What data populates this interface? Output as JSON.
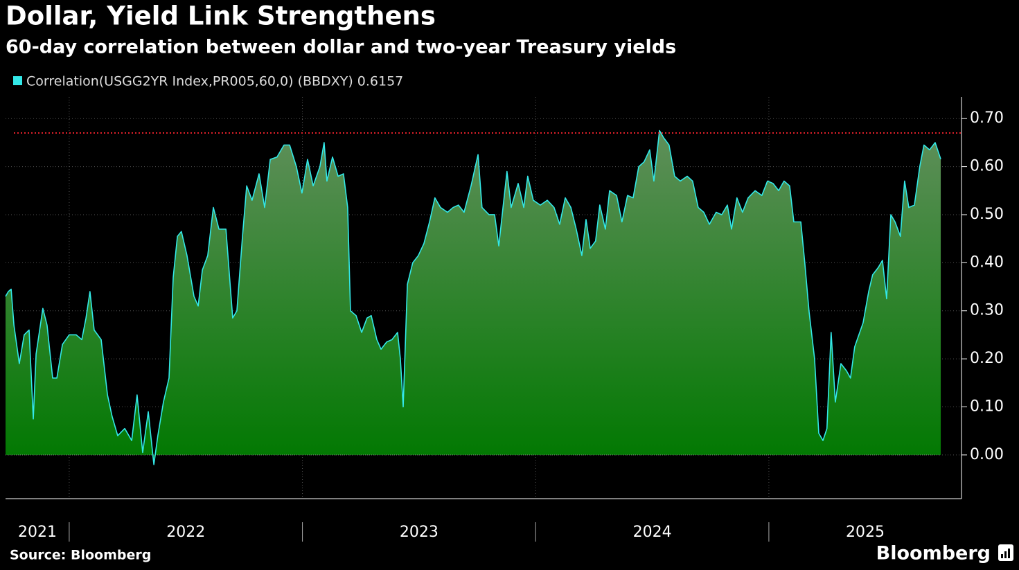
{
  "chart_data": {
    "type": "area",
    "title": "Dollar, Yield Link Strengthens",
    "subtitle": "60-day correlation between dollar and two-year Treasury yields",
    "source": "Source: Bloomberg",
    "brand": "Bloomberg",
    "x": [
      2021.727,
      2021.739,
      2021.751,
      2021.763,
      2021.786,
      2021.807,
      2021.828,
      2021.846,
      2021.858,
      2021.887,
      2021.905,
      2021.929,
      2021.947,
      2021.971,
      2022.0,
      2022.03,
      2022.054,
      2022.072,
      2022.089,
      2022.107,
      2022.137,
      2022.164,
      2022.184,
      2022.208,
      2022.238,
      2022.268,
      2022.291,
      2022.315,
      2022.339,
      2022.363,
      2022.38,
      2022.404,
      2022.428,
      2022.446,
      2022.464,
      2022.481,
      2022.505,
      2022.535,
      2022.553,
      2022.571,
      2022.594,
      2022.618,
      2022.642,
      2022.672,
      2022.701,
      2022.719,
      2022.743,
      2022.761,
      2022.784,
      2022.814,
      2022.838,
      2022.862,
      2022.891,
      2022.921,
      2022.945,
      2022.974,
      2022.998,
      2023.022,
      2023.046,
      2023.075,
      2023.093,
      2023.105,
      2023.129,
      2023.153,
      2023.176,
      2023.194,
      2023.206,
      2023.23,
      2023.254,
      2023.277,
      2023.295,
      2023.319,
      2023.337,
      2023.361,
      2023.384,
      2023.408,
      2023.42,
      2023.432,
      2023.45,
      2023.473,
      2023.497,
      2023.521,
      2023.545,
      2023.568,
      2023.592,
      2023.622,
      2023.646,
      2023.669,
      2023.693,
      2023.723,
      2023.753,
      2023.77,
      2023.8,
      2023.824,
      2023.842,
      2023.86,
      2023.877,
      2023.895,
      2023.925,
      2023.949,
      2023.966,
      2023.99,
      2024.02,
      2024.05,
      2024.079,
      2024.103,
      2024.127,
      2024.151,
      2024.174,
      2024.198,
      2024.216,
      2024.234,
      2024.257,
      2024.275,
      2024.299,
      2024.317,
      2024.347,
      2024.37,
      2024.394,
      2024.418,
      2024.442,
      2024.465,
      2024.489,
      2024.507,
      2024.531,
      2024.549,
      2024.572,
      2024.596,
      2024.62,
      2024.65,
      2024.673,
      2024.697,
      2024.721,
      2024.745,
      2024.774,
      2024.798,
      2024.822,
      2024.84,
      2024.863,
      2024.887,
      2024.911,
      2024.941,
      2024.97,
      2024.994,
      2025.018,
      2025.042,
      2025.065,
      2025.089,
      2025.107,
      2025.137,
      2025.154,
      2025.172,
      2025.196,
      2025.214,
      2025.232,
      2025.249,
      2025.267,
      2025.285,
      2025.309,
      2025.333,
      2025.35,
      2025.368,
      2025.386,
      2025.404,
      2025.428,
      2025.445,
      2025.469,
      2025.487,
      2025.505,
      2025.523,
      2025.541,
      2025.564,
      2025.582,
      2025.6,
      2025.624,
      2025.647,
      2025.665,
      2025.689,
      2025.713,
      2025.737
    ],
    "series": [
      {
        "name": "Correlation(USGG2YR Index,PR005,60,0) (BBDXY) 0.6157",
        "color": "#33e8e8",
        "fill_top": "#5f8f5a",
        "fill_bottom": "#007800",
        "values": [
          0.33,
          0.34,
          0.345,
          0.27,
          0.19,
          0.25,
          0.26,
          0.075,
          0.21,
          0.305,
          0.27,
          0.16,
          0.16,
          0.23,
          0.25,
          0.25,
          0.24,
          0.285,
          0.34,
          0.26,
          0.24,
          0.125,
          0.08,
          0.04,
          0.055,
          0.03,
          0.125,
          0.005,
          0.09,
          -0.02,
          0.04,
          0.11,
          0.16,
          0.37,
          0.455,
          0.465,
          0.415,
          0.33,
          0.31,
          0.385,
          0.415,
          0.515,
          0.47,
          0.47,
          0.285,
          0.3,
          0.455,
          0.56,
          0.53,
          0.585,
          0.515,
          0.615,
          0.62,
          0.645,
          0.645,
          0.6,
          0.545,
          0.615,
          0.56,
          0.6,
          0.65,
          0.57,
          0.62,
          0.58,
          0.585,
          0.515,
          0.3,
          0.29,
          0.255,
          0.285,
          0.29,
          0.24,
          0.22,
          0.235,
          0.24,
          0.255,
          0.2,
          0.1,
          0.355,
          0.4,
          0.415,
          0.44,
          0.485,
          0.535,
          0.515,
          0.505,
          0.515,
          0.52,
          0.505,
          0.56,
          0.625,
          0.515,
          0.5,
          0.5,
          0.435,
          0.515,
          0.59,
          0.515,
          0.565,
          0.515,
          0.58,
          0.53,
          0.52,
          0.53,
          0.515,
          0.48,
          0.535,
          0.515,
          0.47,
          0.415,
          0.49,
          0.43,
          0.445,
          0.52,
          0.47,
          0.55,
          0.54,
          0.485,
          0.54,
          0.535,
          0.6,
          0.61,
          0.635,
          0.57,
          0.675,
          0.66,
          0.645,
          0.58,
          0.57,
          0.58,
          0.57,
          0.515,
          0.505,
          0.48,
          0.505,
          0.5,
          0.52,
          0.47,
          0.535,
          0.505,
          0.535,
          0.55,
          0.54,
          0.57,
          0.565,
          0.55,
          0.57,
          0.56,
          0.485,
          0.485,
          0.4,
          0.3,
          0.2,
          0.045,
          0.03,
          0.055,
          0.255,
          0.11,
          0.19,
          0.175,
          0.16,
          0.225,
          0.25,
          0.275,
          0.34,
          0.375,
          0.39,
          0.405,
          0.325,
          0.5,
          0.485,
          0.455,
          0.57,
          0.515,
          0.52,
          0.6,
          0.645,
          0.635,
          0.65,
          0.6157
        ]
      }
    ],
    "reference_line": {
      "value": 0.67,
      "color": "#e0202a"
    },
    "xlim": [
      2021.727,
      2025.826
    ],
    "xticks": [
      2021,
      2022,
      2023,
      2024,
      2025
    ],
    "ylim": [
      -0.091,
      0.745
    ],
    "yticks": [
      {
        "value": 0,
        "label": "0.00"
      },
      {
        "value": 0.1,
        "label": "0.10"
      },
      {
        "value": 0.2,
        "label": "0.20"
      },
      {
        "value": 0.3,
        "label": "0.30"
      },
      {
        "value": 0.4,
        "label": "0.40"
      },
      {
        "value": 0.5,
        "label": "0.50"
      },
      {
        "value": 0.6,
        "label": "0.60"
      },
      {
        "value": 0.7,
        "label": "0.70"
      }
    ],
    "grid": true
  }
}
